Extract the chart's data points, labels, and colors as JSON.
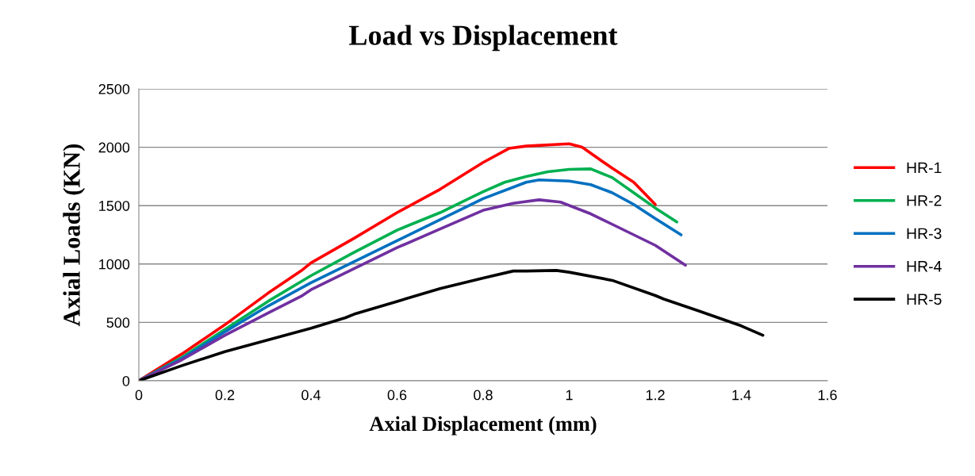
{
  "chart_data": {
    "type": "line",
    "title": "Load vs Displacement",
    "xlabel": "Axial Displacement (mm)",
    "ylabel": "Axial Loads (KN)",
    "xlim": [
      0,
      1.6
    ],
    "xticks": [
      0,
      0.2,
      0.4,
      0.6,
      0.8,
      1,
      1.2,
      1.4,
      1.6
    ],
    "ylim": [
      0,
      2500
    ],
    "yticks": [
      0,
      500,
      1000,
      1500,
      2000,
      2500
    ],
    "grid": "y",
    "legend": "right",
    "marker": "none",
    "line_style": "solid",
    "series": [
      {
        "name": "HR-1",
        "color": "#ff0000",
        "x": [
          0,
          0.1,
          0.2,
          0.3,
          0.38,
          0.4,
          0.5,
          0.6,
          0.7,
          0.8,
          0.86,
          0.9,
          1.0,
          1.03,
          1.1,
          1.15,
          1.2
        ],
        "values": [
          0,
          230,
          480,
          750,
          950,
          1010,
          1220,
          1440,
          1640,
          1870,
          1990,
          2010,
          2030,
          2000,
          1820,
          1700,
          1510
        ]
      },
      {
        "name": "HR-2",
        "color": "#00b050",
        "x": [
          0,
          0.1,
          0.2,
          0.3,
          0.4,
          0.5,
          0.6,
          0.7,
          0.8,
          0.85,
          0.9,
          0.95,
          1.0,
          1.05,
          1.1,
          1.15,
          1.2,
          1.25
        ],
        "values": [
          0,
          200,
          440,
          680,
          900,
          1100,
          1290,
          1440,
          1620,
          1700,
          1750,
          1790,
          1810,
          1815,
          1740,
          1610,
          1480,
          1360
        ]
      },
      {
        "name": "HR-3",
        "color": "#0070c0",
        "x": [
          0,
          0.1,
          0.2,
          0.3,
          0.4,
          0.5,
          0.6,
          0.7,
          0.8,
          0.9,
          0.93,
          1.0,
          1.05,
          1.1,
          1.15,
          1.2,
          1.26
        ],
        "values": [
          0,
          190,
          420,
          640,
          840,
          1020,
          1200,
          1380,
          1560,
          1700,
          1720,
          1710,
          1680,
          1610,
          1510,
          1390,
          1250
        ]
      },
      {
        "name": "HR-4",
        "color": "#7030a0",
        "x": [
          0,
          0.1,
          0.2,
          0.3,
          0.38,
          0.4,
          0.5,
          0.6,
          0.7,
          0.8,
          0.87,
          0.93,
          0.98,
          1.05,
          1.1,
          1.2,
          1.27
        ],
        "values": [
          0,
          180,
          390,
          580,
          730,
          780,
          960,
          1140,
          1300,
          1460,
          1520,
          1550,
          1530,
          1430,
          1340,
          1160,
          990
        ]
      },
      {
        "name": "HR-5",
        "color": "#000000",
        "x": [
          0,
          0.1,
          0.2,
          0.3,
          0.4,
          0.48,
          0.5,
          0.6,
          0.7,
          0.8,
          0.87,
          0.9,
          0.97,
          1.0,
          1.1,
          1.2,
          1.22,
          1.3,
          1.4,
          1.45
        ],
        "values": [
          0,
          130,
          250,
          350,
          450,
          540,
          570,
          680,
          790,
          880,
          940,
          940,
          945,
          930,
          860,
          730,
          700,
          600,
          470,
          390
        ]
      }
    ]
  }
}
